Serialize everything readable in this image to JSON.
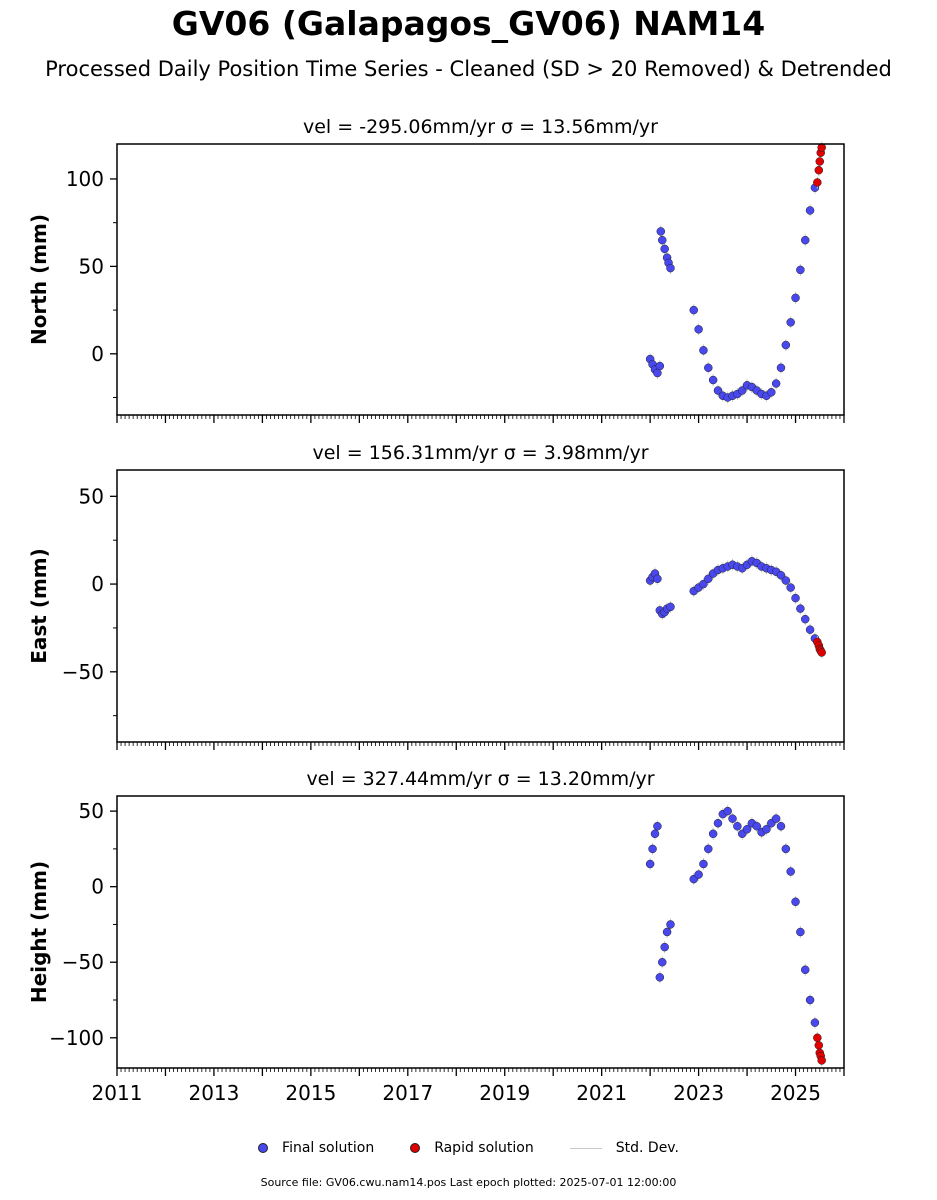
{
  "title": "GV06 (Galapagos_GV06) NAM14",
  "subtitle": "Processed Daily Position Time Series - Cleaned (SD > 20 Removed) & Detrended",
  "legend": {
    "final": "Final solution",
    "rapid": "Rapid solution",
    "std": "Std. Dev."
  },
  "footer": "Source file: GV06.cwu.nam14.pos  Last epoch plotted: 2025-07-01 12:00:00",
  "colors": {
    "final": "#4848ee",
    "rapid": "#e00000",
    "std": "#c8c8c8"
  },
  "chart_data": [
    {
      "type": "scatter",
      "title": "vel = -295.06mm/yr   σ = 13.56mm/yr",
      "ylabel": "North (mm)",
      "xlim": [
        2011.0,
        2026.0
      ],
      "ylim": [
        -35,
        120
      ],
      "yticks": [
        0,
        50,
        100
      ],
      "xticks": [
        2011,
        2013,
        2015,
        2017,
        2019,
        2021,
        2023,
        2025
      ],
      "series": [
        {
          "name": "Final solution",
          "x": [
            2022.0,
            2022.05,
            2022.1,
            2022.15,
            2022.2,
            2022.22,
            2022.25,
            2022.3,
            2022.35,
            2022.38,
            2022.42,
            2022.9,
            2023.0,
            2023.1,
            2023.2,
            2023.3,
            2023.4,
            2023.5,
            2023.6,
            2023.7,
            2023.8,
            2023.9,
            2024.0,
            2024.1,
            2024.2,
            2024.3,
            2024.4,
            2024.5,
            2024.6,
            2024.7,
            2024.8,
            2024.9,
            2025.0,
            2025.1,
            2025.2,
            2025.3,
            2025.4
          ],
          "y": [
            -3,
            -6,
            -9,
            -11,
            -7,
            70,
            65,
            60,
            55,
            52,
            49,
            25,
            14,
            2,
            -8,
            -15,
            -21,
            -24,
            -25,
            -24,
            -23,
            -21,
            -18,
            -19,
            -21,
            -23,
            -24,
            -22,
            -17,
            -8,
            5,
            18,
            32,
            48,
            65,
            82,
            95
          ]
        },
        {
          "name": "Rapid solution",
          "x": [
            2025.45,
            2025.48,
            2025.5,
            2025.52,
            2025.54
          ],
          "y": [
            98,
            105,
            110,
            115,
            118
          ]
        }
      ]
    },
    {
      "type": "scatter",
      "title": "vel = 156.31mm/yr   σ = 3.98mm/yr",
      "ylabel": "East (mm)",
      "xlim": [
        2011.0,
        2026.0
      ],
      "ylim": [
        -90,
        65
      ],
      "yticks": [
        -50,
        0,
        50
      ],
      "xticks": [
        2011,
        2013,
        2015,
        2017,
        2019,
        2021,
        2023,
        2025
      ],
      "series": [
        {
          "name": "Final solution",
          "x": [
            2022.0,
            2022.05,
            2022.1,
            2022.15,
            2022.2,
            2022.25,
            2022.3,
            2022.35,
            2022.42,
            2022.9,
            2023.0,
            2023.1,
            2023.2,
            2023.3,
            2023.4,
            2023.5,
            2023.6,
            2023.7,
            2023.8,
            2023.9,
            2024.0,
            2024.1,
            2024.2,
            2024.3,
            2024.4,
            2024.5,
            2024.6,
            2024.7,
            2024.8,
            2024.9,
            2025.0,
            2025.1,
            2025.2,
            2025.3,
            2025.4
          ],
          "y": [
            2,
            4,
            6,
            3,
            -15,
            -17,
            -16,
            -14,
            -13,
            -4,
            -2,
            0,
            3,
            6,
            8,
            9,
            10,
            11,
            10,
            9,
            11,
            13,
            12,
            10,
            9,
            8,
            7,
            5,
            2,
            -2,
            -8,
            -14,
            -20,
            -26,
            -31
          ]
        },
        {
          "name": "Rapid solution",
          "x": [
            2025.45,
            2025.48,
            2025.5,
            2025.52,
            2025.54
          ],
          "y": [
            -33,
            -35,
            -37,
            -38,
            -39
          ]
        }
      ]
    },
    {
      "type": "scatter",
      "title": "vel = 327.44mm/yr   σ = 13.20mm/yr",
      "ylabel": "Height (mm)",
      "xlim": [
        2011.0,
        2026.0
      ],
      "ylim": [
        -120,
        60
      ],
      "yticks": [
        -100,
        -50,
        0,
        50
      ],
      "xticks": [
        2011,
        2013,
        2015,
        2017,
        2019,
        2021,
        2023,
        2025
      ],
      "series": [
        {
          "name": "Final solution",
          "x": [
            2022.0,
            2022.05,
            2022.1,
            2022.15,
            2022.2,
            2022.25,
            2022.3,
            2022.35,
            2022.42,
            2022.9,
            2023.0,
            2023.1,
            2023.2,
            2023.3,
            2023.4,
            2023.5,
            2023.6,
            2023.7,
            2023.8,
            2023.9,
            2024.0,
            2024.1,
            2024.2,
            2024.3,
            2024.4,
            2024.5,
            2024.6,
            2024.7,
            2024.8,
            2024.9,
            2025.0,
            2025.1,
            2025.2,
            2025.3,
            2025.4
          ],
          "y": [
            15,
            25,
            35,
            40,
            -60,
            -50,
            -40,
            -30,
            -25,
            5,
            8,
            15,
            25,
            35,
            42,
            48,
            50,
            45,
            40,
            35,
            38,
            42,
            40,
            36,
            38,
            42,
            45,
            40,
            25,
            10,
            -10,
            -30,
            -55,
            -75,
            -90
          ]
        },
        {
          "name": "Rapid solution",
          "x": [
            2025.45,
            2025.48,
            2025.5,
            2025.52,
            2025.54
          ],
          "y": [
            -100,
            -105,
            -110,
            -112,
            -115
          ]
        }
      ]
    }
  ]
}
